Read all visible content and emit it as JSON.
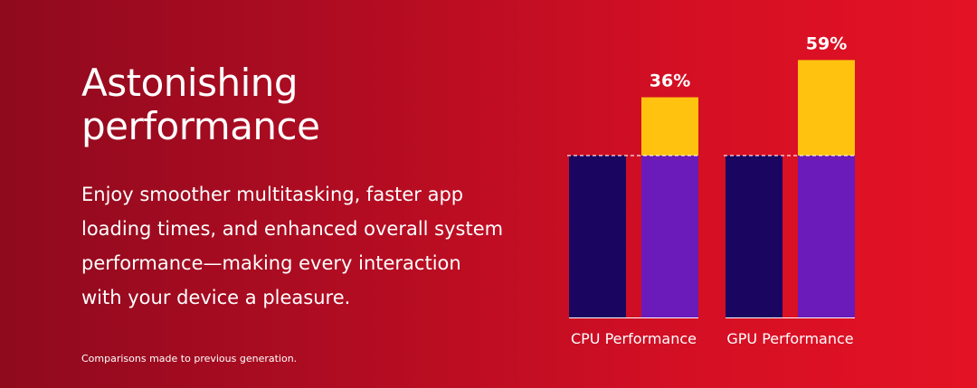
{
  "headline": "Astonishing performance",
  "body": "Enjoy smoother multitasking, faster app loading times, and enhanced overall system performance—making every interaction with your device a pleasure.",
  "footnote": "Comparisons made to previous generation.",
  "colors": {
    "background_left": "#8f0a1e",
    "background_right": "#e41225",
    "previous_generation_bar": "#1a0660",
    "new_generation_bar": "#6a1bb9",
    "improvement_bar": "#ffc20e",
    "text": "#ffffff"
  },
  "chart_data": {
    "type": "bar",
    "categories": [
      "CPU Performance",
      "GPU Performance"
    ],
    "baseline": 1.0,
    "improvements_pct": [
      36,
      59
    ],
    "data_labels": [
      "36%",
      "59%"
    ],
    "series": [
      {
        "values": [
          1.0,
          1.0
        ]
      },
      {
        "values": [
          1.36,
          1.59
        ]
      }
    ],
    "stacked_improvement_segment": true,
    "ylim": [
      0,
      1.59
    ],
    "grid": false,
    "baseline_dashed_line": true
  }
}
